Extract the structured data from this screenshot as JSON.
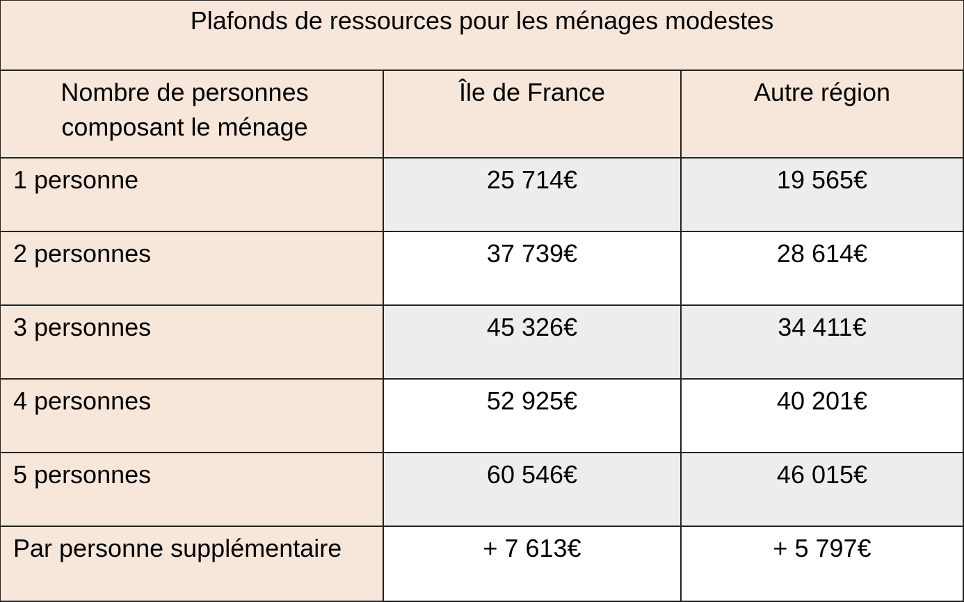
{
  "colors": {
    "label_background": "#f7e6da",
    "shaded_row_background": "#ededed",
    "plain_row_background": "#ffffff",
    "border": "#222222"
  },
  "table": {
    "title": "Plafonds de ressources pour les ménages modestes",
    "headers": {
      "household": "Nombre de personnes composant le ménage",
      "idf": "Île de France",
      "other": "Autre région"
    },
    "rows": [
      {
        "label": "1 personne",
        "idf": "25 714€",
        "other": "19 565€"
      },
      {
        "label": "2 personnes",
        "idf": "37 739€",
        "other": "28 614€"
      },
      {
        "label": "3 personnes",
        "idf": "45 326€",
        "other": "34 411€"
      },
      {
        "label": "4 personnes",
        "idf": "52 925€",
        "other": "40 201€"
      },
      {
        "label": "5 personnes",
        "idf": "60 546€",
        "other": "46 015€"
      },
      {
        "label": "Par personne supplémentaire",
        "idf": "+ 7 613€",
        "other": "+ 5 797€"
      }
    ]
  }
}
